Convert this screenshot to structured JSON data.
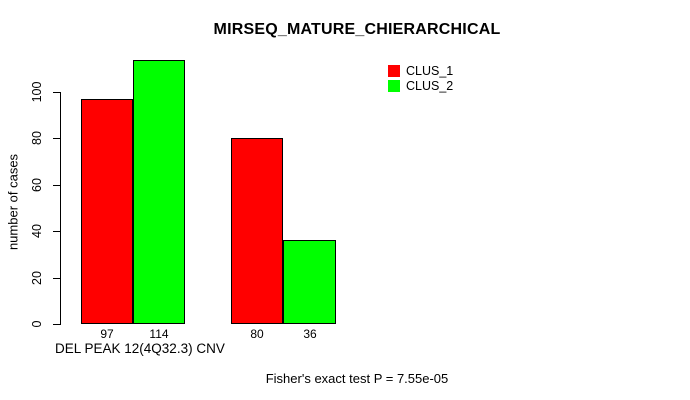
{
  "chart_data": {
    "type": "bar",
    "title": "MIRSEQ_MATURE_CHIERARCHICAL",
    "ylabel": "number of cases",
    "xlabel": "DEL PEAK 12(4Q32.3) CNV",
    "annotation": "Fisher's exact test P = 7.55e-05",
    "yticks": [
      0,
      20,
      40,
      60,
      80,
      100
    ],
    "ylim": [
      0,
      116
    ],
    "grid": false,
    "background": "#ffffff",
    "axis_color": "#000000",
    "bar_border_color": "#000000",
    "legend": {
      "position": "top-right",
      "entries": [
        {
          "label": "CLUS_1",
          "color": "#ff0000"
        },
        {
          "label": "CLUS_2",
          "color": "#00ff00"
        }
      ]
    },
    "series": [
      {
        "name": "CLUS_1",
        "color": "#ff0000",
        "values": [
          97,
          80
        ]
      },
      {
        "name": "CLUS_2",
        "color": "#00ff00",
        "values": [
          114,
          36
        ]
      }
    ],
    "bars": [
      {
        "series": "CLUS_1",
        "group": 1,
        "value": 97,
        "color": "#ff0000"
      },
      {
        "series": "CLUS_2",
        "group": 1,
        "value": 114,
        "color": "#00ff00"
      },
      {
        "series": "CLUS_1",
        "group": 2,
        "value": 80,
        "color": "#ff0000"
      },
      {
        "series": "CLUS_2",
        "group": 2,
        "value": 36,
        "color": "#00ff00"
      }
    ]
  }
}
